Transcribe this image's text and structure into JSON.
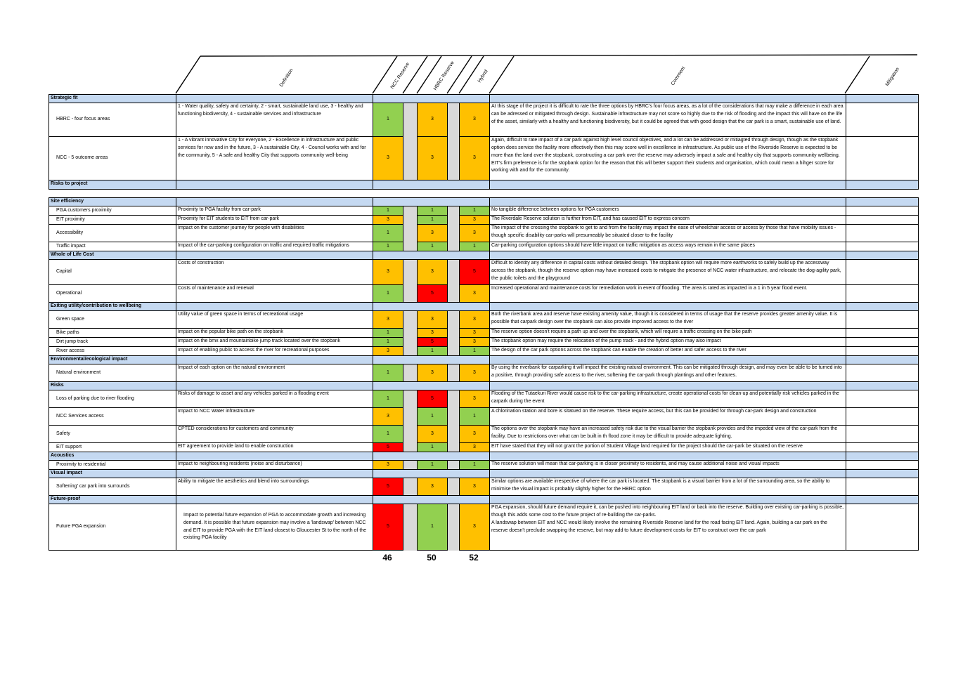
{
  "colors": {
    "section_bg": "#c5d9f1",
    "score_1": "#92d050",
    "score_3": "#ffc000",
    "score_5": "#ff0000",
    "gap_grey": "#d9d9d9"
  },
  "headers": {
    "definition": "Definition",
    "ncc": "NCC Reserve",
    "hbrc": "HBRC Reserve",
    "hybrid": "Hybrid",
    "comment": "Comment",
    "mitigation": "Mitigation"
  },
  "sections": [
    {
      "title": "Strategic fit",
      "rows": [
        {
          "criterion": "HBRC - four focus areas",
          "definition": "1 - Water quality, safety and certainty, 2 - smart, sustainable land use, 3 - healthy and functioning biodiversity, 4 - sustainable services and infrastructure",
          "scores": [
            1,
            3,
            3
          ],
          "comment": "At this stage of the project it is difficult to rate the three options by HBRC's four focus areas, as a lot of the considerations that may make a difference in each area can be adressed or mitigated through design.  Sustainable infrastructure may not score so highly due to the risk of flooding and the impact this will have on the life of the asset, similarly with a healthy and functioning biodiversity, but it could be agreed that with good design that the car park is a smart, sustainable use of land."
        },
        {
          "criterion": "NCC - 5 outcome areas",
          "definition": "1 - A vibrant innovative City for everyone, 2 - Excellence in infrastructure and public services for now and in the future, 3 - A sustainable City, 4 - Council works with and for the community, 5 - A safe and healthy City that supports community well-being",
          "scores": [
            3,
            3,
            3
          ],
          "comment": "Again, difficult to rate impact of a car park against high level council objectives, and a lot can be addressed or mitiagted through design, though as the stopbank option does service the facility more effectively then this may score well in excellence in infrastructure. As public use of the Riverside Reserve is expected to be more than the land over the stopbank, constructing a car park over the reserve may adversely impact a safe and healthy city that supports community wellbeing. EIT's firm preference is for the stopbank option for the reason that this will better support their students and organisation, which could mean a hihger score for working with and for the community."
        }
      ]
    },
    {
      "title": "Risks to project",
      "rows": []
    },
    {
      "title": "Site efficiency",
      "rows": [
        {
          "criterion": "PGA customers proximity",
          "definition": "Proximity to PGA facility from car-park",
          "scores": [
            1,
            1,
            1
          ],
          "comment": "No tangible difference between options for PGA customers"
        },
        {
          "criterion": "EIT proximity",
          "definition": "Proximity for EIT students to EIT from car-park",
          "scores": [
            3,
            1,
            3
          ],
          "comment": "The Riverdale Reserve solution is further from EIT, and has caused EIT to express concern"
        },
        {
          "criterion": "Accessibility",
          "definition": "Impact on the customer journey for people with disabilities",
          "scores": [
            1,
            3,
            3
          ],
          "comment": "The impact of the crossing the stopbank to get to and from the facility may impact the ease of wheelchair access or access by those that have mobility issues - though specific disability car-parks will presumeably be situated closer to the facility"
        },
        {
          "criterion": "Traffic impact",
          "definition": "Impact of the car-parking configuration on traffic and required traffic mitigations",
          "scores": [
            1,
            1,
            1
          ],
          "comment": "Car-parking configuration options should have little impact on traffic mitigation as access ways remain in the same places"
        }
      ]
    },
    {
      "title": "Whole of Life Cost",
      "rows": [
        {
          "criterion": "Capital",
          "definition": "Costs of construction",
          "scores": [
            3,
            3,
            5
          ],
          "comment": "Difficult to identity any difference in capital costs without detailed design.  The stopbank option will require more earthworks to safely build up the accessway across the stopbank, though the reserve option may have increased costs to mitigate the presence of NCC water infrastructure, and relocate the dog-agility park, the public toilets and the playground"
        },
        {
          "criterion": "Operational",
          "definition": "Costs of maintenance and renewal",
          "scores": [
            1,
            5,
            3
          ],
          "comment": "Increased operational and maintenance costs for remediation work in event of flooding. The area is rated as impacted in a 1 in 5 year flood event."
        }
      ]
    },
    {
      "title": "Exiting utility/contribution to wellbeing",
      "rows": [
        {
          "criterion": "Green space",
          "definition": "Utility value of green space in terms of recreational usage",
          "scores": [
            3,
            3,
            3
          ],
          "comment": "Both the riverbank area and reserve have existing amenity value, though it is considered in terms of usage that the reserve provides greater amenity value. It is possible that carpark design over the stopbank can also provide improved access to the river"
        },
        {
          "criterion": "Bike paths",
          "definition": "Impact on the popular bike path on the stopbank",
          "scores": [
            1,
            3,
            3
          ],
          "comment": "The reserve option doesn't require a path up and over the stopbank, which will require a traffic crossing on the bike path"
        },
        {
          "criterion": "Dirt jump track",
          "definition": "Impact on the bmx and mountainbike jump track located over the stopbank",
          "scores": [
            1,
            5,
            3
          ],
          "comment": "The stopbank option may require the relocation of the pump track - and the hybrid option may also impact"
        },
        {
          "criterion": "River access",
          "definition": "Impact of enabling public to access the river for recreational purposes",
          "scores": [
            3,
            1,
            1
          ],
          "comment": "The design of the car park options across the stopbank can enable the creation of better and safer access to the river"
        }
      ]
    },
    {
      "title": "Environmental/ecological impact",
      "rows": [
        {
          "criterion": "Natural environment",
          "definition": "Impact of each option on the natural environment",
          "scores": [
            1,
            3,
            3
          ],
          "comment": "By using the riverbank for carparking it will impact the existing natural environment. This can be mitigated through design, and may even be able to be turned into a positive, through providing safe access to the river, softening the car-park through plantings and other features."
        }
      ]
    },
    {
      "title": "Risks",
      "rows": [
        {
          "criterion": "Loss of parking due to river flooding",
          "definition": "Risks of damage to asset and any vehicles parked in a flooding event",
          "scores": [
            1,
            5,
            3
          ],
          "comment": "Flooding of the Tutaekuri River would cause risk to the car-parking infrastructure, create operational costs for clean-up and potentially risk vehicles parked in the carpark during the event"
        },
        {
          "criterion": "NCC Services access",
          "definition": "Impact to NCC Water infrastructure",
          "scores": [
            3,
            1,
            1
          ],
          "comment": "A chlorination station and bore is sitatued on the reserve. These require access, but this can be provided for through car-park design and construction"
        },
        {
          "criterion": "Safety",
          "definition": "CPTED considerations for customers and community",
          "scores": [
            1,
            3,
            3
          ],
          "comment": "The options over the stopbank may have an increased safety risk due to the visual barrier the stopbank provides and the impeded view of the car-park from the facility.  Due to restrictions over what can be built in th flood zone it may be difficult to provide adequate lighting."
        },
        {
          "criterion": "EIT support",
          "definition": "EIT agreement to provide land to enable construction",
          "scores": [
            5,
            1,
            3
          ],
          "comment": "EIT have stated that they will not grant the portion of Student Village land required for the project should the car-park be situated on the reserve"
        }
      ]
    },
    {
      "title": "Acoustics",
      "rows": [
        {
          "criterion": "Proximity to residential",
          "definition": "Impact to neighbouring residents (noise and disturbance)",
          "scores": [
            3,
            1,
            1
          ],
          "comment": "The reserve solution will mean that car-parking is in closer proximity to residents, and may cause additional noise and visual impacts"
        }
      ]
    },
    {
      "title": "Visual impact",
      "rows": [
        {
          "criterion": "Softening' car park into surrounds",
          "definition": "Ability to mitigate the aesthetics and blend into surroundings",
          "scores": [
            5,
            3,
            3
          ],
          "comment": "Similar options are available irrespective of where the car park is located. The stopbank is a visual barrier from a lot of the surrounding area, so the ability to minimise the visual impact is probably slightly higher for the HBRC option"
        }
      ]
    },
    {
      "title": "Future-proof",
      "rows": [
        {
          "criterion": "Future PGA expansion",
          "definition": "Impact to potential future expansion of PGA to accommodate growth and increasing demand. It is possible that future expansion may involve a 'landswap' between NCC and EIT to provide PGA with the EIT land closest to Gloucester St to the north of the existing PGA facility",
          "scores": [
            5,
            1,
            3
          ],
          "comment": "PGA expansion, should future demand require it, can be pushed into neighbouring EIT land or back into the reserve. Building over existing car-parking is possible, though this adds some cost to the future project of re-building the car-parks.\nA landswap between EIT and NCC would likely involve the remaining Riverside Reserve land for the road facing EIT land. Again, building a car park on the reserve doesn't preclude swapping the reserve, but may add to future development costs for EIT to construct over the car park"
        }
      ]
    }
  ],
  "totals": {
    "ncc": "46",
    "hbrc": "50",
    "hybrid": "52"
  }
}
